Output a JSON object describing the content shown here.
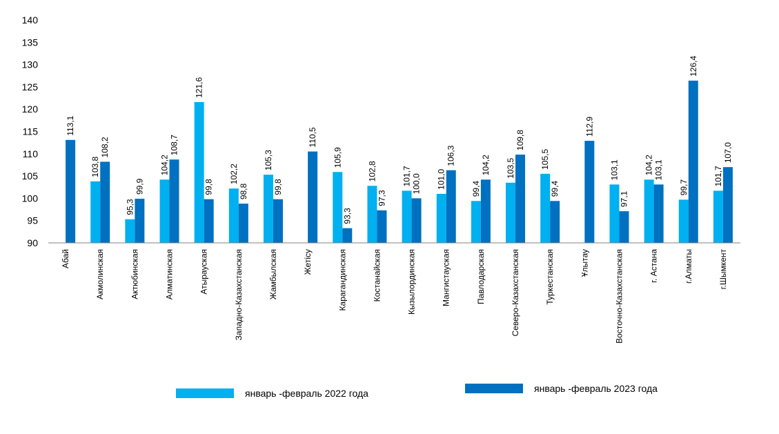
{
  "chart_data": {
    "type": "bar",
    "title": "",
    "xlabel": "",
    "ylabel": "",
    "ylim": [
      90,
      140
    ],
    "yticks": [
      90,
      95,
      100,
      105,
      110,
      115,
      120,
      125,
      130,
      135,
      140
    ],
    "grid": false,
    "legend_position": "bottom",
    "categories": [
      "Абай",
      "Акмолинская",
      "Актюбинская",
      "Алматинская",
      "Атырауская",
      "Западно-Казахстанская",
      "Жамбылская",
      "Жетісу",
      "Карагандинская",
      "Костанайская",
      "Кызылординская",
      "Мангистауская",
      "Павлодарская",
      "Северо-Казахстанская",
      "Туркестанская",
      "Ұлытау",
      "Восточно-Казахстанская",
      "г. Астана",
      "г.Алматы",
      "г.Шымкент"
    ],
    "series": [
      {
        "name": "январь -февраль 2022 года",
        "color": "#00b0f0",
        "values": [
          null,
          103.8,
          95.3,
          104.2,
          121.6,
          102.2,
          105.3,
          null,
          105.9,
          102.8,
          101.7,
          101.0,
          99.4,
          103.5,
          105.5,
          null,
          103.1,
          104.2,
          99.7,
          101.7
        ],
        "labels": [
          "",
          "103,8",
          "95,3",
          "104,2",
          "121,6",
          "102,2",
          "105,3",
          "",
          "105,9",
          "102,8",
          "101,7",
          "101,0",
          "99,4",
          "103,5",
          "105,5",
          "",
          "103,1",
          "104,2",
          "99,7",
          "101,7"
        ]
      },
      {
        "name": "январь -февраль 2023 года",
        "color": "#0070c0",
        "values": [
          113.1,
          108.2,
          99.9,
          108.7,
          99.8,
          98.8,
          99.8,
          110.5,
          93.3,
          97.3,
          100.0,
          106.3,
          104.2,
          109.8,
          99.4,
          112.9,
          97.1,
          103.1,
          126.4,
          107.0
        ],
        "labels": [
          "113,1",
          "108,2",
          "99,9",
          "108,7",
          "99,8",
          "98,8",
          "99,8",
          "110,5",
          "93,3",
          "97,3",
          "100,0",
          "106,3",
          "104,2",
          "109,8",
          "99,4",
          "112,9",
          "97,1",
          "103,1",
          "126,4",
          "107,0"
        ]
      }
    ]
  }
}
